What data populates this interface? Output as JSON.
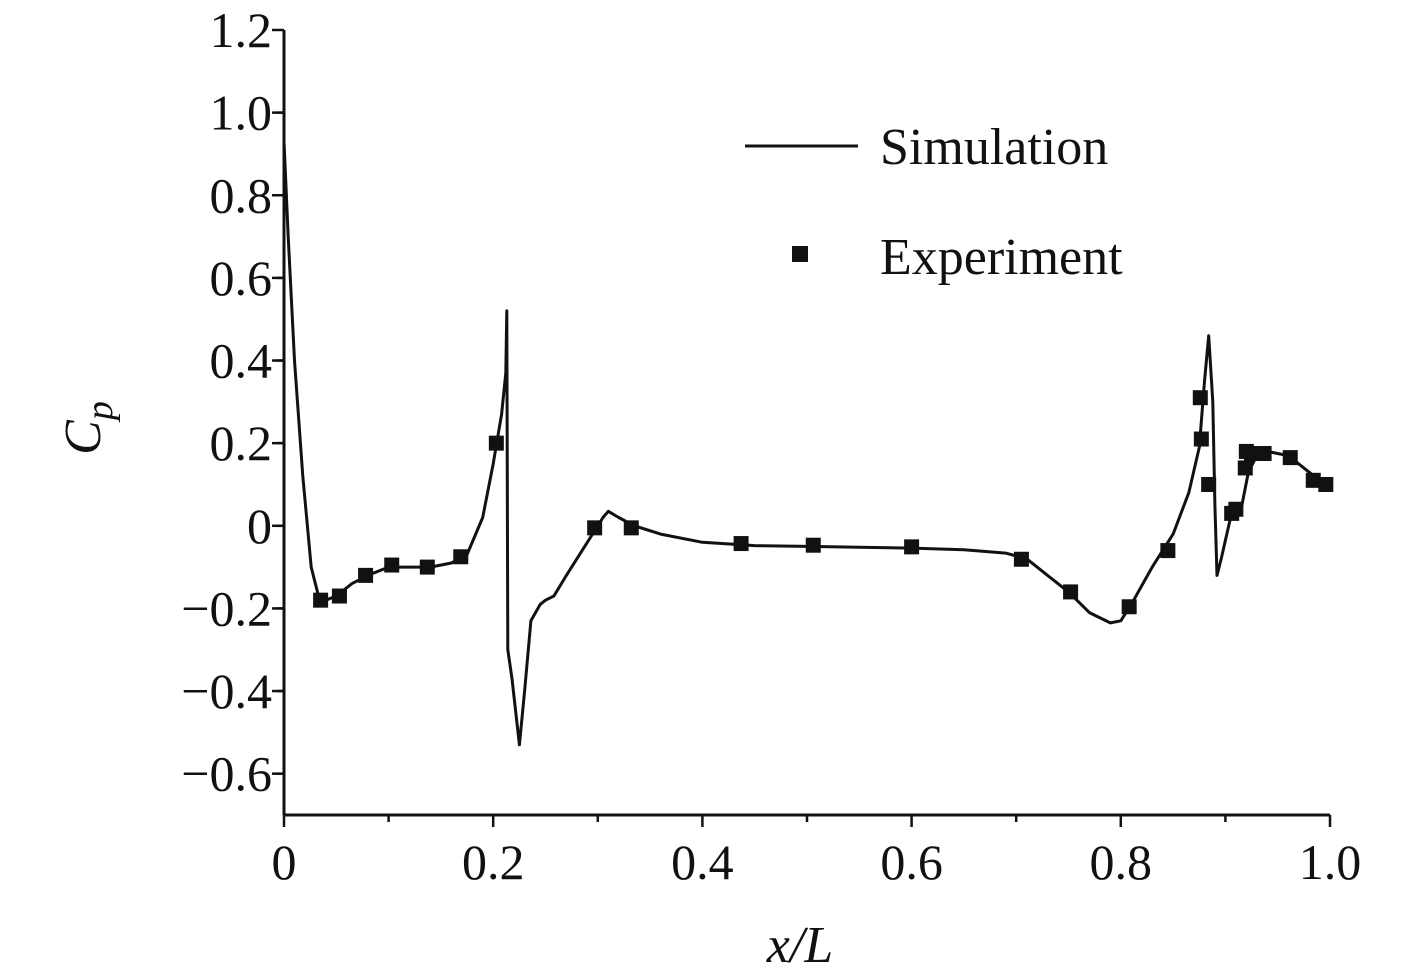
{
  "chart_data": {
    "type": "line",
    "title": "",
    "xlabel": "x/L",
    "ylabel_main": "C",
    "ylabel_sub": "p",
    "xlim": [
      0,
      1.0
    ],
    "ylim": [
      -0.7,
      1.2
    ],
    "x_ticks": [
      0,
      0.2,
      0.4,
      0.6,
      0.8,
      1.0
    ],
    "x_tick_labels": [
      "0",
      "0.2",
      "0.4",
      "0.6",
      "0.8",
      "1.0"
    ],
    "y_ticks": [
      1.2,
      1.0,
      0.8,
      0.6,
      0.4,
      0.2,
      0,
      -0.2,
      -0.4,
      -0.6
    ],
    "y_tick_labels": [
      "1.2",
      "1.0",
      "0.8",
      "0.6",
      "0.4",
      "0.2",
      "0",
      "−0.2",
      "−0.4",
      "−0.6"
    ],
    "legend_position": "top-right",
    "series": [
      {
        "name": "Simulation",
        "kind": "line",
        "color": "#111111",
        "points": [
          [
            0.0,
            0.93
          ],
          [
            0.004,
            0.7
          ],
          [
            0.01,
            0.4
          ],
          [
            0.018,
            0.12
          ],
          [
            0.026,
            -0.1
          ],
          [
            0.033,
            -0.17
          ],
          [
            0.04,
            -0.18
          ],
          [
            0.05,
            -0.17
          ],
          [
            0.065,
            -0.14
          ],
          [
            0.08,
            -0.12
          ],
          [
            0.1,
            -0.1
          ],
          [
            0.12,
            -0.1
          ],
          [
            0.14,
            -0.1
          ],
          [
            0.16,
            -0.09
          ],
          [
            0.175,
            -0.07
          ],
          [
            0.19,
            0.02
          ],
          [
            0.2,
            0.15
          ],
          [
            0.208,
            0.27
          ],
          [
            0.212,
            0.37
          ],
          [
            0.213,
            0.52
          ],
          [
            0.214,
            -0.3
          ],
          [
            0.218,
            -0.37
          ],
          [
            0.225,
            -0.53
          ],
          [
            0.23,
            -0.4
          ],
          [
            0.236,
            -0.23
          ],
          [
            0.245,
            -0.19
          ],
          [
            0.25,
            -0.18
          ],
          [
            0.258,
            -0.17
          ],
          [
            0.27,
            -0.12
          ],
          [
            0.285,
            -0.06
          ],
          [
            0.3,
            0.0
          ],
          [
            0.305,
            0.02
          ],
          [
            0.31,
            0.035
          ],
          [
            0.32,
            0.02
          ],
          [
            0.335,
            0.0
          ],
          [
            0.36,
            -0.02
          ],
          [
            0.4,
            -0.04
          ],
          [
            0.45,
            -0.048
          ],
          [
            0.5,
            -0.05
          ],
          [
            0.55,
            -0.052
          ],
          [
            0.6,
            -0.054
          ],
          [
            0.65,
            -0.058
          ],
          [
            0.69,
            -0.066
          ],
          [
            0.71,
            -0.08
          ],
          [
            0.73,
            -0.12
          ],
          [
            0.75,
            -0.16
          ],
          [
            0.77,
            -0.21
          ],
          [
            0.79,
            -0.235
          ],
          [
            0.8,
            -0.23
          ],
          [
            0.81,
            -0.19
          ],
          [
            0.83,
            -0.1
          ],
          [
            0.85,
            -0.02
          ],
          [
            0.865,
            0.08
          ],
          [
            0.875,
            0.19
          ],
          [
            0.88,
            0.35
          ],
          [
            0.884,
            0.46
          ],
          [
            0.888,
            0.3
          ],
          [
            0.89,
            0.05
          ],
          [
            0.892,
            -0.12
          ],
          [
            0.896,
            -0.08
          ],
          [
            0.905,
            0.02
          ],
          [
            0.915,
            0.04
          ],
          [
            0.922,
            0.13
          ],
          [
            0.93,
            0.17
          ],
          [
            0.94,
            0.18
          ],
          [
            0.96,
            0.17
          ],
          [
            0.975,
            0.14
          ],
          [
            0.99,
            0.11
          ],
          [
            1.0,
            0.1
          ]
        ]
      },
      {
        "name": "Experiment",
        "kind": "scatter",
        "marker": "square",
        "color": "#111111",
        "points": [
          [
            0.035,
            -0.18
          ],
          [
            0.053,
            -0.17
          ],
          [
            0.078,
            -0.12
          ],
          [
            0.103,
            -0.095
          ],
          [
            0.137,
            -0.1
          ],
          [
            0.169,
            -0.075
          ],
          [
            0.203,
            0.2
          ],
          [
            0.297,
            -0.005
          ],
          [
            0.332,
            -0.005
          ],
          [
            0.437,
            -0.043
          ],
          [
            0.506,
            -0.047
          ],
          [
            0.6,
            -0.051
          ],
          [
            0.705,
            -0.081
          ],
          [
            0.752,
            -0.16
          ],
          [
            0.808,
            -0.196
          ],
          [
            0.845,
            -0.06
          ],
          [
            0.876,
            0.31
          ],
          [
            0.877,
            0.21
          ],
          [
            0.884,
            0.1
          ],
          [
            0.906,
            0.03
          ],
          [
            0.91,
            0.04
          ],
          [
            0.919,
            0.14
          ],
          [
            0.92,
            0.18
          ],
          [
            0.925,
            0.175
          ],
          [
            0.937,
            0.175
          ],
          [
            0.962,
            0.165
          ],
          [
            0.984,
            0.11
          ],
          [
            0.996,
            0.1
          ]
        ]
      }
    ]
  }
}
